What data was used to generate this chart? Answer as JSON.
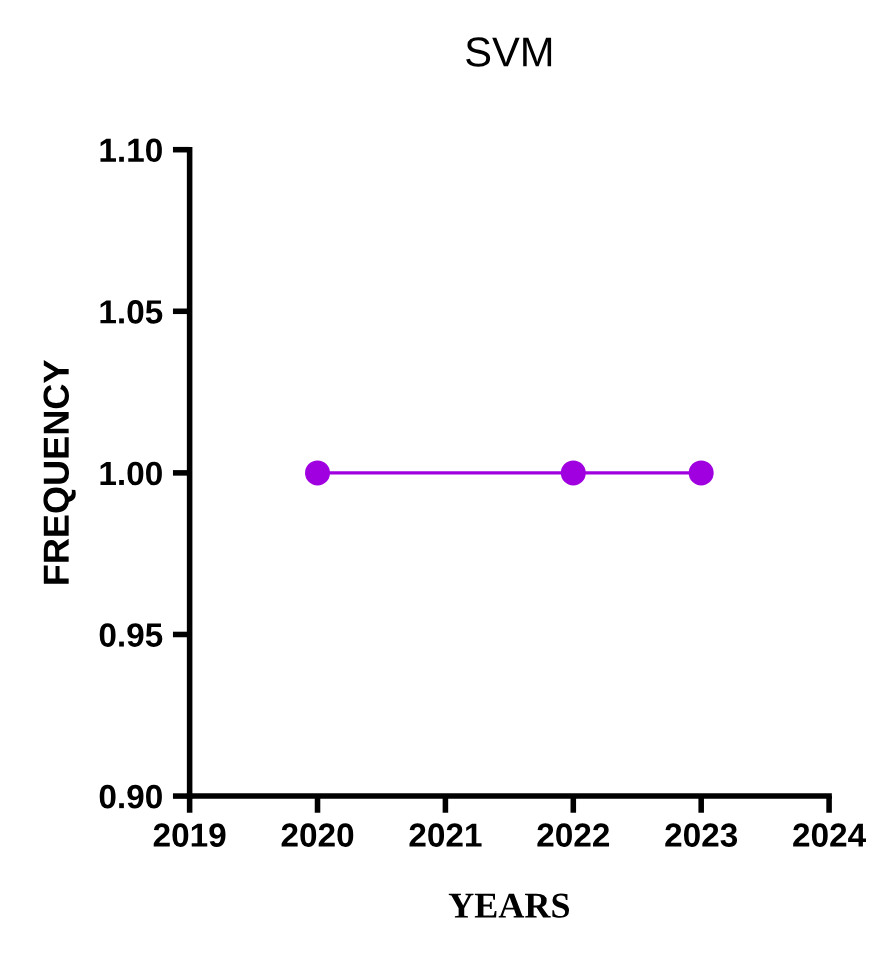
{
  "chart_data": {
    "type": "line",
    "title": "SVM",
    "xlabel": "YEARS",
    "ylabel": "FREQUENCY",
    "x": [
      2020,
      2022,
      2023
    ],
    "series": [
      {
        "color": "#a000e0",
        "values": [
          1.0,
          1.0,
          1.0
        ]
      }
    ],
    "xlim": [
      2019,
      2024
    ],
    "xticks": [
      2019,
      2020,
      2021,
      2022,
      2023,
      2024
    ],
    "ylim": [
      0.9,
      1.1
    ],
    "yticks": [
      {
        "value": 0.9,
        "label": "0.90"
      },
      {
        "value": 0.95,
        "label": "0.95"
      },
      {
        "value": 1.0,
        "label": "1.00"
      },
      {
        "value": 1.05,
        "label": "1.05"
      },
      {
        "value": 1.1,
        "label": "1.10"
      }
    ],
    "grid": false,
    "legend": false,
    "marker": "circle",
    "line_style": "solid"
  }
}
